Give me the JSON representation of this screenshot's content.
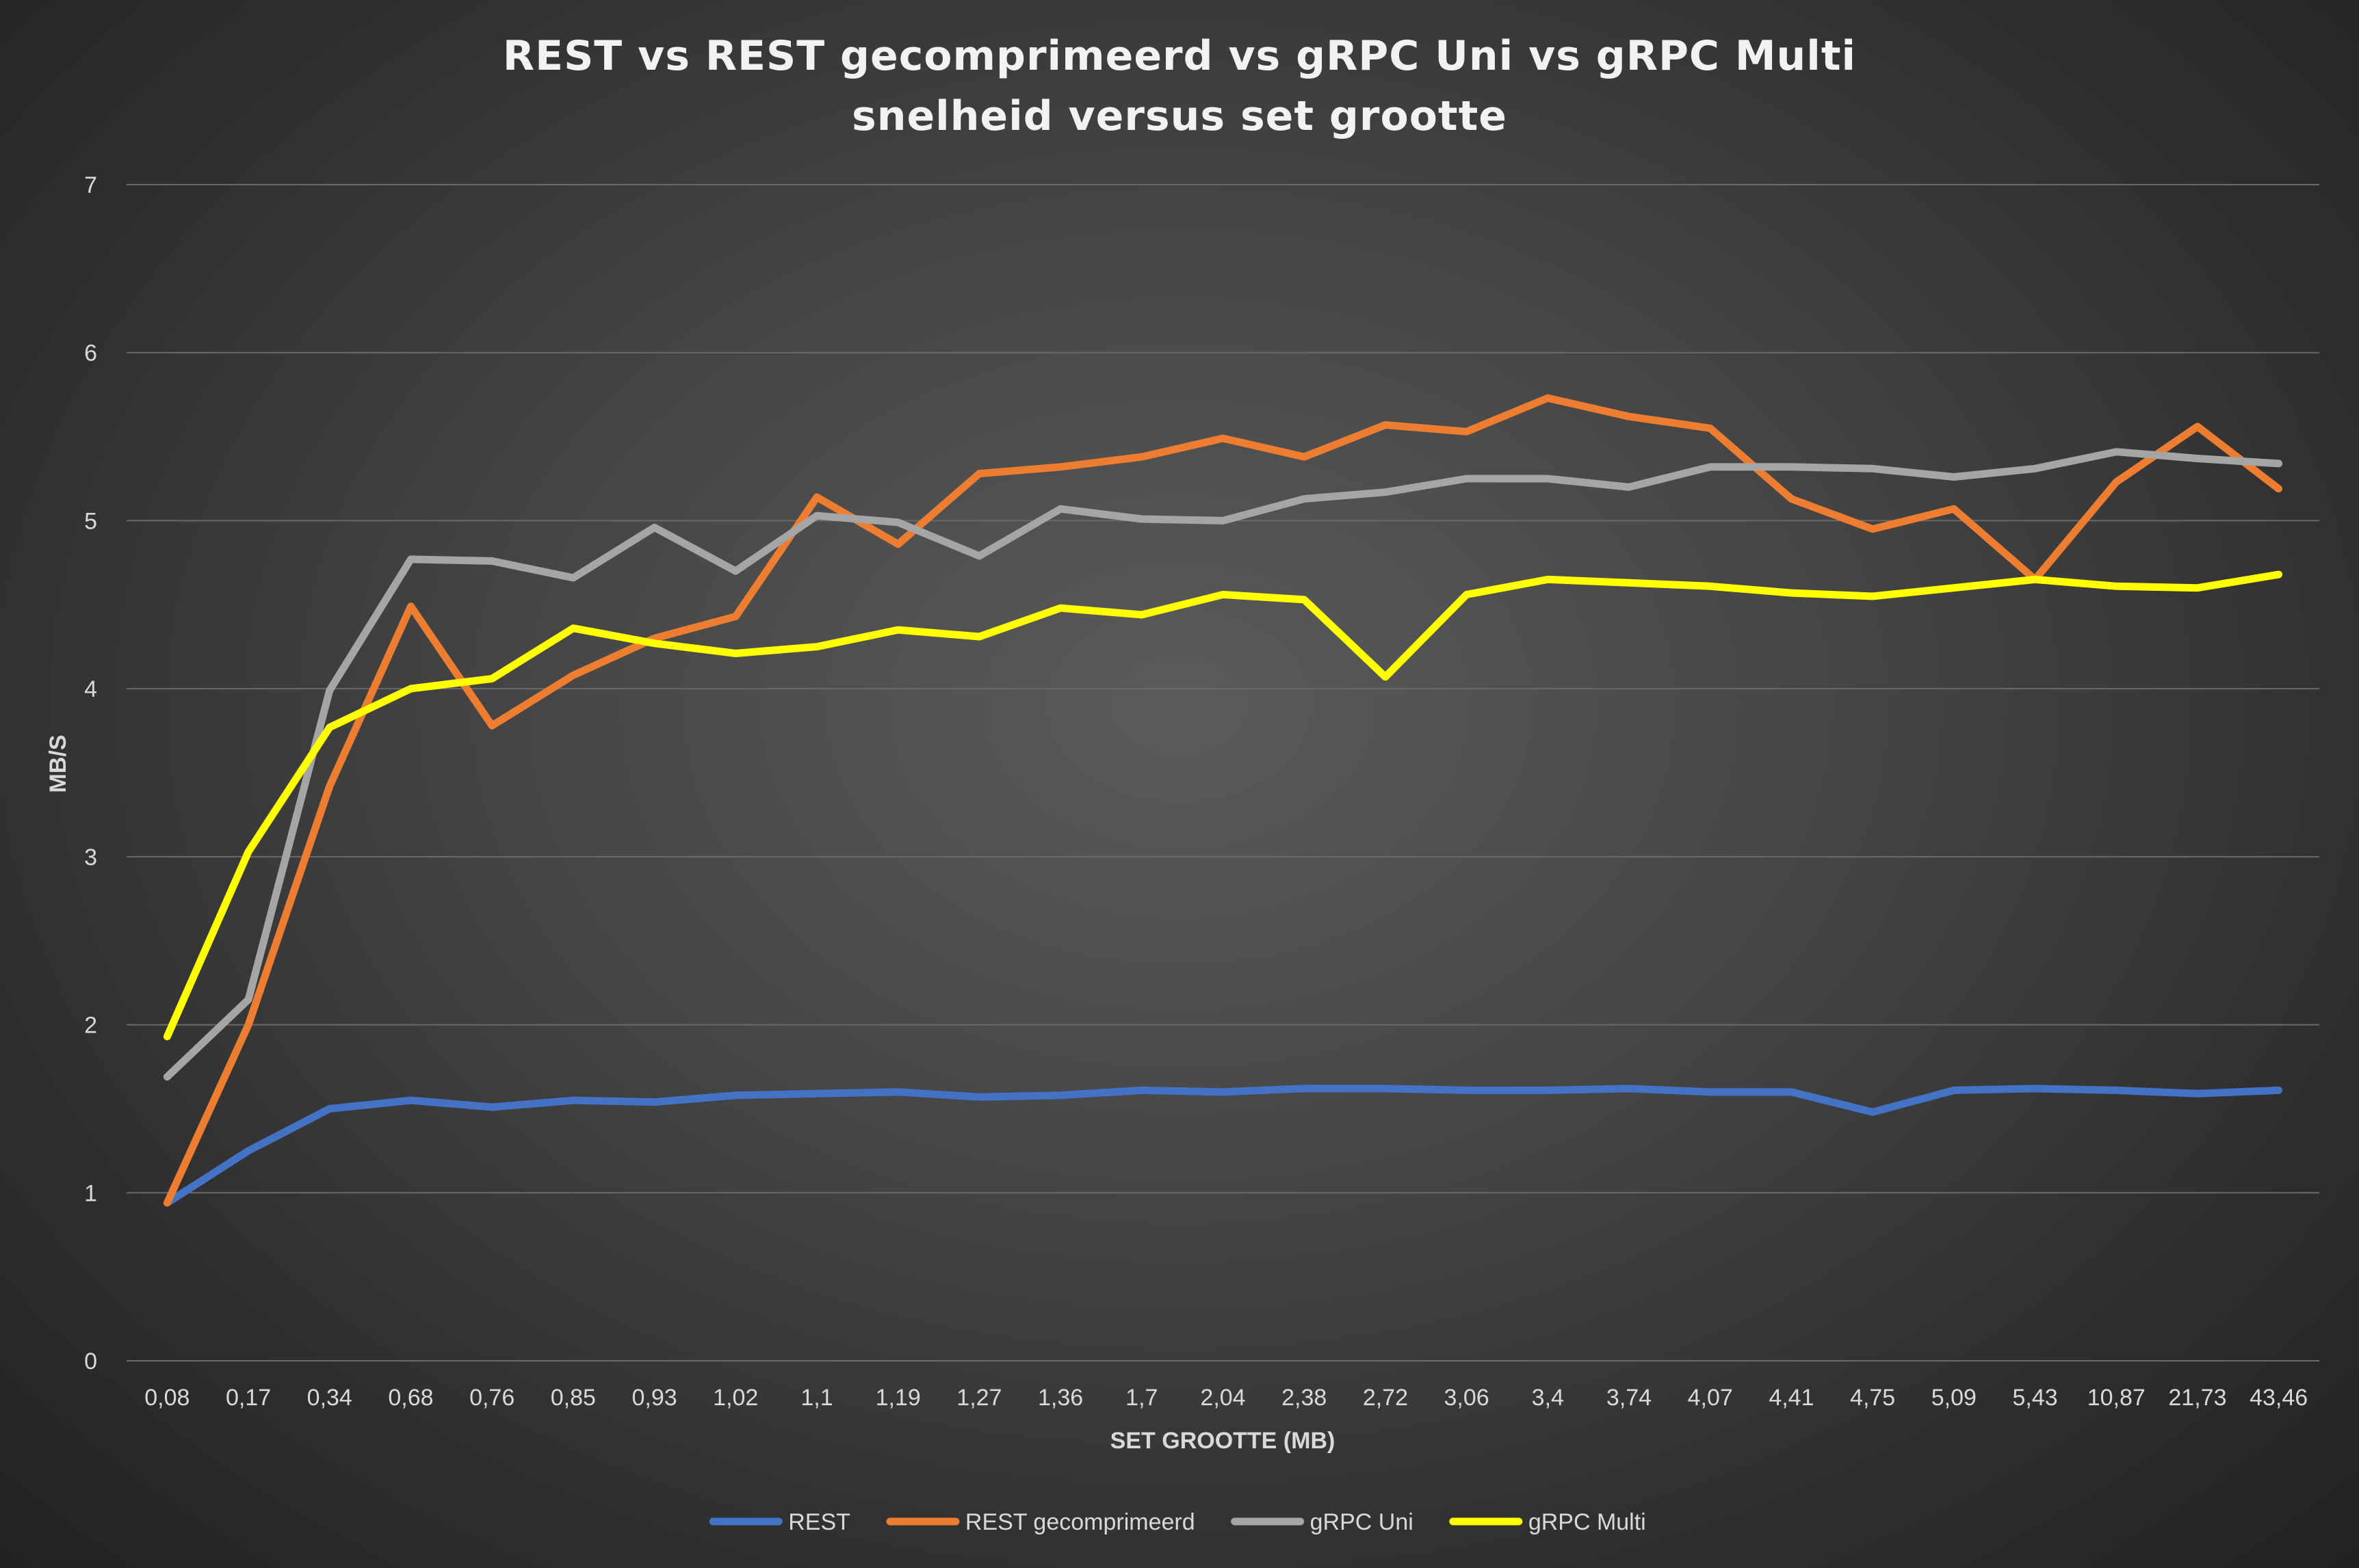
{
  "chart_data": {
    "type": "line",
    "title_lines": [
      "REST vs REST gecomprimeerd vs gRPC Uni vs gRPC Multi",
      "snelheid versus set grootte"
    ],
    "xlabel": "SET GROOTTE (MB)",
    "ylabel": "MB/S",
    "ylim": [
      0,
      7
    ],
    "yticks": [
      "0",
      "1",
      "2",
      "3",
      "4",
      "5",
      "6",
      "7"
    ],
    "grid": true,
    "legend_position": "bottom",
    "categories": [
      "0,08",
      "0,17",
      "0,34",
      "0,68",
      "0,76",
      "0,85",
      "0,93",
      "1,02",
      "1,1",
      "1,19",
      "1,27",
      "1,36",
      "1,7",
      "2,04",
      "2,38",
      "2,72",
      "3,06",
      "3,4",
      "3,74",
      "4,07",
      "4,41",
      "4,75",
      "5,09",
      "5,43",
      "10,87",
      "21,73",
      "43,46"
    ],
    "series": [
      {
        "name": "REST",
        "color": "#4472c4",
        "values": [
          0.94,
          1.25,
          1.5,
          1.55,
          1.51,
          1.55,
          1.54,
          1.58,
          1.59,
          1.6,
          1.57,
          1.58,
          1.61,
          1.6,
          1.62,
          1.62,
          1.61,
          1.61,
          1.62,
          1.6,
          1.6,
          1.48,
          1.61,
          1.62,
          1.61,
          1.59,
          1.61
        ]
      },
      {
        "name": "REST gecomprimeerd",
        "color": "#ed7d31",
        "values": [
          0.94,
          2.0,
          3.42,
          4.49,
          3.78,
          4.08,
          4.3,
          4.43,
          5.14,
          4.86,
          5.28,
          5.32,
          5.38,
          5.49,
          5.38,
          5.57,
          5.53,
          5.73,
          5.62,
          5.55,
          5.13,
          4.95,
          5.07,
          4.65,
          5.23,
          5.56,
          5.19
        ]
      },
      {
        "name": "gRPC Uni",
        "color": "#a5a5a5",
        "values": [
          1.69,
          2.15,
          3.99,
          4.77,
          4.76,
          4.66,
          4.96,
          4.7,
          5.03,
          4.99,
          4.79,
          5.07,
          5.01,
          5.0,
          5.13,
          5.17,
          5.25,
          5.25,
          5.2,
          5.32,
          5.32,
          5.31,
          5.26,
          5.31,
          5.41,
          5.37,
          5.34
        ]
      },
      {
        "name": "gRPC Multi",
        "color": "#ffff00",
        "values": [
          1.93,
          3.03,
          3.77,
          4.0,
          4.06,
          4.36,
          4.27,
          4.21,
          4.25,
          4.35,
          4.31,
          4.48,
          4.44,
          4.56,
          4.53,
          4.07,
          4.56,
          4.65,
          4.63,
          4.61,
          4.57,
          4.55,
          4.6,
          4.65,
          4.61,
          4.6,
          4.68
        ]
      }
    ]
  }
}
